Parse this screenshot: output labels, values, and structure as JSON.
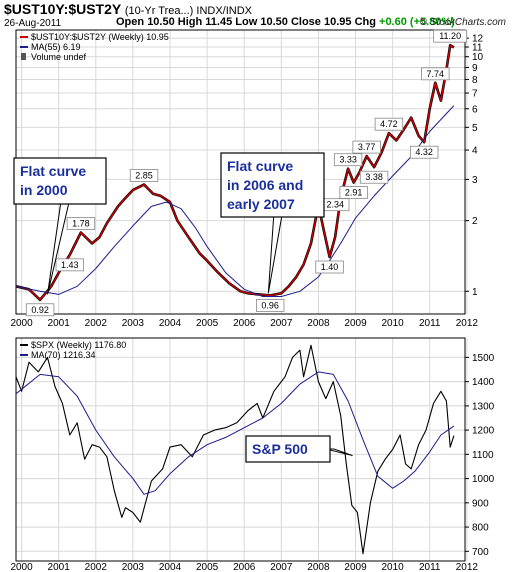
{
  "header": {
    "symbol": "$UST10Y:$UST2Y",
    "subtitle": "(10-Yr Trea...) INDX/INDX",
    "date": "26-Aug-2011",
    "open_label": "Open",
    "open": "10.50",
    "high_label": "High",
    "high": "11.45",
    "low_label": "Low",
    "low": "10.50",
    "close_label": "Close",
    "close": "10.95",
    "chg_label": "Chg",
    "chg": "+0.60 (+5.80%)",
    "credit": "© StockCharts.com"
  },
  "colors": {
    "price": "#000000",
    "ratio_line": "#cc0000",
    "ma": "#1c1c8c",
    "callout_text": "#1a2f9e",
    "grid": "#d8d8d8"
  },
  "chart_data": [
    {
      "type": "line",
      "name": "top-panel",
      "legend": [
        "$UST10Y:$UST2Y (Weekly) 10.95",
        "MA(55) 6.19",
        "Volume undef"
      ],
      "y_scale": "log",
      "ylim": [
        0.8,
        13
      ],
      "y_ticks": [
        1,
        2,
        3,
        4,
        5,
        6,
        7,
        8,
        9,
        10,
        11,
        12
      ],
      "x_ticks": [
        "2000",
        "2001",
        "2002",
        "2003",
        "2004",
        "2005",
        "2006",
        "2007",
        "2008",
        "2009",
        "2010",
        "2011",
        "2012"
      ],
      "xlim": [
        1999.85,
        2011.95
      ],
      "series": [
        {
          "name": "$UST10Y:$UST2Y",
          "x": [
            1999.85,
            2000.2,
            2000.5,
            2000.8,
            2001.0,
            2001.3,
            2001.6,
            2001.9,
            2002.1,
            2002.3,
            2002.6,
            2002.8,
            2003.0,
            2003.3,
            2003.55,
            2003.75,
            2004.0,
            2004.2,
            2004.5,
            2004.8,
            2005.0,
            2005.3,
            2005.6,
            2005.9,
            2006.1,
            2006.4,
            2006.7,
            2007.0,
            2007.2,
            2007.4,
            2007.6,
            2007.8,
            2008.0,
            2008.15,
            2008.3,
            2008.45,
            2008.6,
            2008.8,
            2008.95,
            2009.1,
            2009.3,
            2009.5,
            2009.7,
            2009.9,
            2010.1,
            2010.3,
            2010.5,
            2010.7,
            2010.85,
            2011.0,
            2011.15,
            2011.3,
            2011.45,
            2011.55,
            2011.65
          ],
          "y": [
            1.05,
            1.02,
            0.92,
            1.05,
            1.2,
            1.43,
            1.78,
            1.6,
            1.7,
            1.95,
            2.3,
            2.5,
            2.7,
            2.85,
            2.6,
            2.55,
            2.4,
            2.0,
            1.7,
            1.45,
            1.35,
            1.2,
            1.08,
            1.0,
            0.98,
            0.97,
            0.96,
            0.98,
            1.05,
            1.15,
            1.3,
            1.6,
            2.34,
            1.8,
            1.4,
            1.7,
            2.5,
            3.33,
            2.91,
            3.2,
            3.77,
            3.38,
            3.9,
            4.72,
            4.4,
            4.9,
            5.5,
            4.6,
            4.32,
            6.0,
            7.74,
            6.5,
            8.8,
            11.2,
            10.95
          ]
        },
        {
          "name": "MA(55)",
          "x": [
            1999.85,
            2000.5,
            2001.0,
            2001.5,
            2002.0,
            2002.5,
            2003.0,
            2003.5,
            2003.9,
            2004.3,
            2004.7,
            2005.0,
            2005.5,
            2006.0,
            2006.5,
            2007.0,
            2007.5,
            2008.0,
            2008.3,
            2008.6,
            2009.0,
            2009.5,
            2010.0,
            2010.5,
            2011.0,
            2011.3,
            2011.65
          ],
          "y": [
            1.05,
            1.0,
            0.97,
            1.05,
            1.25,
            1.55,
            1.9,
            2.3,
            2.4,
            2.25,
            1.85,
            1.55,
            1.2,
            1.02,
            0.95,
            0.95,
            1.0,
            1.15,
            1.35,
            1.6,
            2.05,
            2.55,
            3.1,
            3.75,
            4.8,
            5.4,
            6.19
          ]
        }
      ],
      "data_labels": [
        {
          "x": 2000.5,
          "y": 0.92,
          "text": "0.92",
          "pos": "below"
        },
        {
          "x": 2001.3,
          "y": 1.43,
          "text": "1.43",
          "pos": "below"
        },
        {
          "x": 2001.6,
          "y": 1.78,
          "text": "1.78",
          "pos": "above"
        },
        {
          "x": 2003.3,
          "y": 2.85,
          "text": "2.85",
          "pos": "above"
        },
        {
          "x": 2006.7,
          "y": 0.96,
          "text": "0.96",
          "pos": "below"
        },
        {
          "x": 2008.0,
          "y": 2.34,
          "text": "2.34",
          "pos": "right"
        },
        {
          "x": 2008.3,
          "y": 1.4,
          "text": "1.40",
          "pos": "below"
        },
        {
          "x": 2008.8,
          "y": 3.33,
          "text": "3.33",
          "pos": "above"
        },
        {
          "x": 2008.95,
          "y": 2.91,
          "text": "2.91",
          "pos": "below"
        },
        {
          "x": 2009.3,
          "y": 3.77,
          "text": "3.77",
          "pos": "above"
        },
        {
          "x": 2009.5,
          "y": 3.38,
          "text": "3.38",
          "pos": "below"
        },
        {
          "x": 2009.9,
          "y": 4.72,
          "text": "4.72",
          "pos": "above"
        },
        {
          "x": 2010.85,
          "y": 4.32,
          "text": "4.32",
          "pos": "below"
        },
        {
          "x": 2011.15,
          "y": 7.74,
          "text": "7.74",
          "pos": "above"
        },
        {
          "x": 2011.55,
          "y": 11.2,
          "text": "11.20",
          "pos": "above"
        }
      ],
      "annotations": [
        {
          "lines": [
            "Flat curve",
            "in 2000"
          ],
          "pointer_to": [
            2000.7,
            0.97
          ]
        },
        {
          "lines": [
            "Flat curve",
            "in 2006 and",
            "early 2007"
          ],
          "pointer_to": [
            2006.65,
            0.98
          ]
        }
      ]
    },
    {
      "type": "line",
      "name": "bottom-panel",
      "legend": [
        "$SPX (Weekly) 1176.80",
        "MA(70) 1216.34"
      ],
      "ylim": [
        660,
        1580
      ],
      "y_ticks": [
        700,
        800,
        900,
        1000,
        1100,
        1200,
        1300,
        1400,
        1500
      ],
      "x_ticks": [
        "2000",
        "2001",
        "2002",
        "2003",
        "2004",
        "2005",
        "2006",
        "2007",
        "2008",
        "2009",
        "2010",
        "2011",
        "2012"
      ],
      "xlim": [
        1999.85,
        2011.95
      ],
      "series": [
        {
          "name": "$SPX",
          "x": [
            1999.85,
            2000.0,
            2000.2,
            2000.45,
            2000.7,
            2000.9,
            2001.1,
            2001.3,
            2001.5,
            2001.7,
            2001.9,
            2002.1,
            2002.3,
            2002.5,
            2002.7,
            2002.8,
            2003.0,
            2003.2,
            2003.5,
            2003.8,
            2004.0,
            2004.3,
            2004.6,
            2004.9,
            2005.2,
            2005.5,
            2005.8,
            2006.1,
            2006.35,
            2006.5,
            2006.8,
            2007.1,
            2007.3,
            2007.5,
            2007.6,
            2007.8,
            2008.0,
            2008.2,
            2008.4,
            2008.6,
            2008.75,
            2008.9,
            2009.05,
            2009.2,
            2009.4,
            2009.6,
            2009.8,
            2010.0,
            2010.2,
            2010.35,
            2010.5,
            2010.7,
            2010.9,
            2011.1,
            2011.3,
            2011.45,
            2011.55,
            2011.65
          ],
          "y": [
            1420,
            1360,
            1480,
            1440,
            1500,
            1380,
            1310,
            1180,
            1230,
            1080,
            1140,
            1130,
            1090,
            950,
            840,
            880,
            860,
            820,
            990,
            1040,
            1130,
            1140,
            1090,
            1180,
            1200,
            1210,
            1230,
            1280,
            1310,
            1250,
            1360,
            1420,
            1500,
            1530,
            1420,
            1550,
            1400,
            1330,
            1400,
            1260,
            1060,
            890,
            860,
            690,
            900,
            1030,
            1080,
            1120,
            1180,
            1060,
            1040,
            1140,
            1200,
            1310,
            1360,
            1320,
            1130,
            1176.8
          ]
        },
        {
          "name": "MA(70)",
          "x": [
            1999.85,
            2000.5,
            2001.0,
            2001.5,
            2002.0,
            2002.5,
            2003.0,
            2003.3,
            2003.6,
            2004.0,
            2004.5,
            2005.0,
            2005.5,
            2006.0,
            2006.5,
            2007.0,
            2007.5,
            2008.0,
            2008.4,
            2008.8,
            2009.2,
            2009.6,
            2010.0,
            2010.3,
            2010.6,
            2011.0,
            2011.3,
            2011.65
          ],
          "y": [
            1350,
            1430,
            1420,
            1340,
            1200,
            1090,
            1000,
            935,
            950,
            1020,
            1090,
            1140,
            1170,
            1210,
            1250,
            1310,
            1390,
            1440,
            1430,
            1320,
            1160,
            1010,
            960,
            990,
            1030,
            1110,
            1180,
            1216.34
          ]
        }
      ],
      "annotations": [
        {
          "lines": [
            "S&P 500"
          ],
          "pointer_to": [
            2008.92,
            1095
          ]
        }
      ]
    }
  ]
}
